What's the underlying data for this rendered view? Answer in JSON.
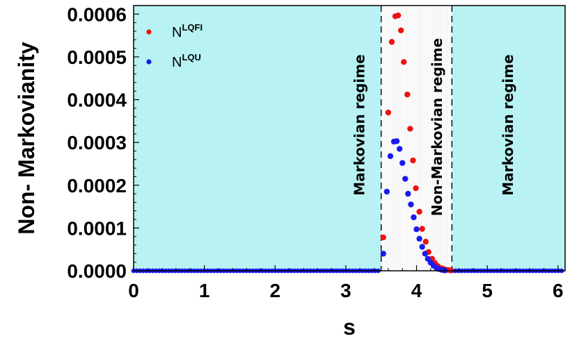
{
  "chart_data": {
    "type": "scatter",
    "xlabel": "s",
    "ylabel": "Non- Markovianity",
    "xlim": [
      0,
      6.1
    ],
    "ylim": [
      0,
      0.00062
    ],
    "x_ticks": [
      "0",
      "1",
      "2",
      "3",
      "4",
      "5",
      "6"
    ],
    "y_ticks": [
      "0.0000",
      "0.0001",
      "0.0002",
      "0.0003",
      "0.0004",
      "0.0005",
      "0.0006"
    ],
    "grid": false,
    "legend_position": "top-left",
    "colors": {
      "shade": "#b8f2f2",
      "series_lqfi": "#ee1111",
      "series_lqu": "#1a1aee"
    },
    "regions": [
      {
        "label": "Markovian regime",
        "x_start": 0,
        "x_end": 3.5,
        "shaded": true
      },
      {
        "label": "Non-Markovian regime",
        "x_start": 3.5,
        "x_end": 4.5,
        "shaded": false
      },
      {
        "label": "Markovian regime",
        "x_start": 4.5,
        "x_end": 6.1,
        "shaded": true
      }
    ],
    "series": [
      {
        "name": "N",
        "sup": "LQFI",
        "color": "#ee1111",
        "points": [
          [
            3.53,
            7.8e-05
          ],
          [
            3.6,
            0.00037
          ],
          [
            3.65,
            0.000535
          ],
          [
            3.7,
            0.000595
          ],
          [
            3.74,
            0.000597
          ],
          [
            3.78,
            0.000562
          ],
          [
            3.82,
            0.000488
          ],
          [
            3.87,
            0.000412
          ],
          [
            3.91,
            0.000332
          ],
          [
            3.95,
            0.000258
          ],
          [
            3.99,
            0.000193
          ],
          [
            4.04,
            0.000138
          ],
          [
            4.08,
            9.8e-05
          ],
          [
            4.13,
            6.8e-05
          ],
          [
            4.17,
            4.4e-05
          ],
          [
            4.22,
            2.8e-05
          ],
          [
            4.26,
            1.8e-05
          ],
          [
            4.3,
            1.1e-05
          ],
          [
            4.35,
            6e-06
          ],
          [
            4.39,
            4e-06
          ],
          [
            4.44,
            2e-06
          ],
          [
            4.48,
            1e-06
          ]
        ]
      },
      {
        "name": "N",
        "sup": "LQU",
        "color": "#1a1aee",
        "points": [
          [
            3.53,
            4e-05
          ],
          [
            3.58,
            0.000185
          ],
          [
            3.63,
            0.000268
          ],
          [
            3.68,
            0.000302
          ],
          [
            3.72,
            0.000303
          ],
          [
            3.76,
            0.000285
          ],
          [
            3.8,
            0.000252
          ],
          [
            3.84,
            0.000215
          ],
          [
            3.88,
            0.00018
          ],
          [
            3.92,
            0.000155
          ],
          [
            3.96,
            0.000125
          ],
          [
            4.0,
            9.7e-05
          ],
          [
            4.04,
            7.5e-05
          ],
          [
            4.08,
            5.6e-05
          ],
          [
            4.12,
            4e-05
          ],
          [
            4.16,
            2.8e-05
          ],
          [
            4.2,
            1.9e-05
          ],
          [
            4.24,
            1.2e-05
          ],
          [
            4.28,
            7e-06
          ],
          [
            4.32,
            4e-06
          ],
          [
            4.36,
            2e-06
          ],
          [
            4.4,
            1e-06
          ]
        ]
      }
    ]
  }
}
